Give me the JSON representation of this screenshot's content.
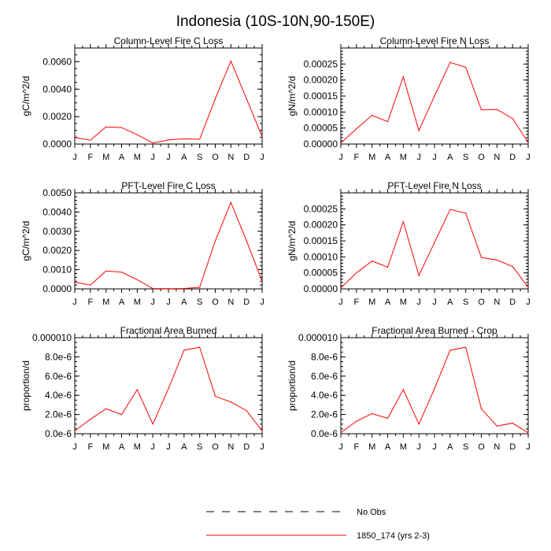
{
  "figure_title": "Indonesia (10S-10N,90-150E)",
  "colors": {
    "series": "#ff0000",
    "obs": "#000000"
  },
  "legend": {
    "entries": [
      {
        "label": "No Obs",
        "style": "dashed",
        "color": "#000000"
      },
      {
        "label": "1850_174 (yrs 2-3)",
        "style": "solid",
        "color": "#ff0000"
      }
    ]
  },
  "chart_data": [
    {
      "type": "line",
      "title": "Column-Level Fire C Loss",
      "xlabel": "",
      "ylabel": "gC/m^2/d",
      "categories": [
        "J",
        "F",
        "M",
        "A",
        "M",
        "J",
        "J",
        "A",
        "S",
        "O",
        "N",
        "D",
        "J"
      ],
      "ylim": [
        0,
        0.007
      ],
      "yticks": [
        0,
        0.002,
        0.004,
        0.006
      ],
      "ytick_labels": [
        "0.0000",
        "0.0020",
        "0.0040",
        "0.0060"
      ],
      "yminor": 0.0005,
      "series": [
        {
          "name": "1850_174 (yrs 2-3)",
          "values": [
            0.00048,
            0.00028,
            0.00125,
            0.0012,
            0.00068,
            8e-05,
            0.0003,
            0.00038,
            0.00035,
            0.0033,
            0.00605,
            0.0033,
            0.00055
          ]
        }
      ]
    },
    {
      "type": "line",
      "title": "Column-Level Fire N Loss",
      "xlabel": "",
      "ylabel": "gN/m^2/d",
      "categories": [
        "J",
        "F",
        "M",
        "A",
        "M",
        "J",
        "J",
        "A",
        "S",
        "O",
        "N",
        "D",
        "J"
      ],
      "ylim": [
        0,
        0.0003
      ],
      "yticks": [
        0,
        5e-05,
        0.0001,
        0.00015,
        0.0002,
        0.00025
      ],
      "ytick_labels": [
        "0.00000",
        "0.00005",
        "0.00010",
        "0.00015",
        "0.00020",
        "0.00025"
      ],
      "yminor": 1e-05,
      "series": [
        {
          "name": "1850_174 (yrs 2-3)",
          "values": [
            3e-06,
            4.8e-05,
            9e-05,
            7e-05,
            0.00021,
            4.2e-05,
            0.00015,
            0.000255,
            0.00024,
            0.000107,
            0.000108,
            8e-05,
            5e-06
          ]
        }
      ]
    },
    {
      "type": "line",
      "title": "PFT-Level Fire C Loss",
      "xlabel": "",
      "ylabel": "gC/m^2/d",
      "categories": [
        "J",
        "F",
        "M",
        "A",
        "M",
        "J",
        "J",
        "A",
        "S",
        "O",
        "N",
        "D",
        "J"
      ],
      "ylim": [
        0,
        0.005
      ],
      "yticks": [
        0,
        0.001,
        0.002,
        0.003,
        0.004,
        0.005
      ],
      "ytick_labels": [
        "0.0000",
        "0.0010",
        "0.0020",
        "0.0030",
        "0.0040",
        "0.0050"
      ],
      "yminor": 0.0002,
      "series": [
        {
          "name": "1850_174 (yrs 2-3)",
          "values": [
            0.00035,
            0.0002,
            0.00093,
            0.00087,
            0.00048,
            2e-05,
            1e-05,
            2e-05,
            8e-05,
            0.0025,
            0.0045,
            0.0025,
            0.0004
          ]
        }
      ]
    },
    {
      "type": "line",
      "title": "PFT-Level Fire N Loss",
      "xlabel": "",
      "ylabel": "gN/m^2/d",
      "categories": [
        "J",
        "F",
        "M",
        "A",
        "M",
        "J",
        "J",
        "A",
        "S",
        "O",
        "N",
        "D",
        "J"
      ],
      "ylim": [
        0,
        0.0003
      ],
      "yticks": [
        0,
        5e-05,
        0.0001,
        0.00015,
        0.0002,
        0.00025
      ],
      "ytick_labels": [
        "0.00000",
        "0.00005",
        "0.00010",
        "0.00015",
        "0.00020",
        "0.00025"
      ],
      "yminor": 1e-05,
      "series": [
        {
          "name": "1850_174 (yrs 2-3)",
          "values": [
            3e-06,
            5e-05,
            8.7e-05,
            6.8e-05,
            0.00021,
            4.2e-05,
            0.000145,
            0.000248,
            0.000237,
            9.8e-05,
            9e-05,
            7e-05,
            5e-06
          ]
        }
      ]
    },
    {
      "type": "line",
      "title": "Fractional Area Burned",
      "xlabel": "",
      "ylabel": "proportion/d",
      "categories": [
        "J",
        "F",
        "M",
        "A",
        "M",
        "J",
        "J",
        "A",
        "S",
        "O",
        "N",
        "D",
        "J"
      ],
      "ylim": [
        0,
        1e-05
      ],
      "yticks": [
        0,
        2e-06,
        4e-06,
        6e-06,
        8e-06,
        1e-05
      ],
      "ytick_labels": [
        "0.0e-6",
        "2.0e-6",
        "4.0e-6",
        "6.0e-6",
        "8.0e-6",
        "0.000010"
      ],
      "yminor": 5e-07,
      "series": [
        {
          "name": "1850_174 (yrs 2-3)",
          "values": [
            3e-07,
            1.5e-06,
            2.6e-06,
            2e-06,
            4.6e-06,
            1e-06,
            4.7e-06,
            8.7e-06,
            9e-06,
            3.9e-06,
            3.3e-06,
            2.4e-06,
            3e-07
          ]
        }
      ]
    },
    {
      "type": "line",
      "title": "Fractional Area Burned - Crop",
      "xlabel": "",
      "ylabel": "proportion/d",
      "categories": [
        "J",
        "F",
        "M",
        "A",
        "M",
        "J",
        "J",
        "A",
        "S",
        "O",
        "N",
        "D",
        "J"
      ],
      "ylim": [
        0,
        1e-05
      ],
      "yticks": [
        0,
        2e-06,
        4e-06,
        6e-06,
        8e-06,
        1e-05
      ],
      "ytick_labels": [
        "0.0e-6",
        "2.0e-6",
        "4.0e-6",
        "6.0e-6",
        "8.0e-6",
        "0.000010"
      ],
      "yminor": 5e-07,
      "series": [
        {
          "name": "1850_174 (yrs 2-3)",
          "values": [
            1e-07,
            1.3e-06,
            2.1e-06,
            1.6e-06,
            4.6e-06,
            1e-06,
            4.7e-06,
            8.7e-06,
            9e-06,
            2.6e-06,
            8e-07,
            1.1e-06,
            1e-07
          ]
        }
      ]
    }
  ]
}
